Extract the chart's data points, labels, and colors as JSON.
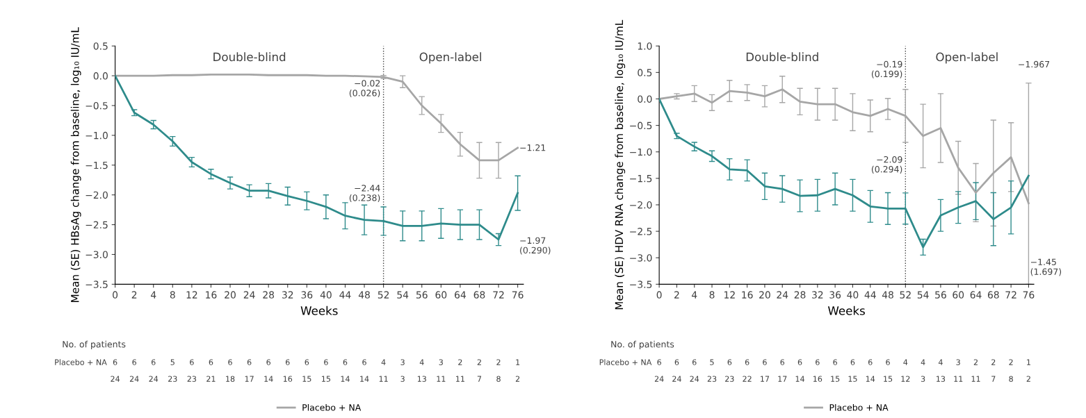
{
  "chart_data": [
    {
      "type": "line",
      "xlabel": "Weeks",
      "ylabel": "Mean (SE) HBsAg change from baseline, log₁₀ IU/mL",
      "categories": [
        "0",
        "2",
        "4",
        "8",
        "12",
        "16",
        "20",
        "24",
        "28",
        "32",
        "36",
        "40",
        "44",
        "48",
        "52",
        "54",
        "56",
        "60",
        "64",
        "68",
        "72",
        "76"
      ],
      "series": [
        {
          "name": "Placebo + NA",
          "color": "#a6a6a6",
          "values": [
            0,
            0,
            0,
            0.01,
            0.01,
            0.02,
            0.02,
            0.02,
            0.01,
            0.01,
            0.01,
            0,
            0,
            -0.01,
            -0.02,
            -0.1,
            -0.5,
            -0.8,
            -1.15,
            -1.42,
            -1.42,
            -1.21
          ],
          "errors": [
            null,
            null,
            null,
            null,
            null,
            null,
            null,
            null,
            null,
            null,
            null,
            null,
            null,
            null,
            0.026,
            0.1,
            0.15,
            0.15,
            0.2,
            0.3,
            0.3,
            null
          ]
        },
        {
          "color": "#2e8b8b",
          "values": [
            0,
            -0.62,
            -0.82,
            -1.1,
            -1.45,
            -1.65,
            -1.8,
            -1.93,
            -1.93,
            -2.02,
            -2.1,
            -2.2,
            -2.35,
            -2.42,
            -2.44,
            -2.52,
            -2.52,
            -2.48,
            -2.5,
            -2.5,
            -2.75,
            -1.97
          ],
          "errors": [
            null,
            0.05,
            0.07,
            0.08,
            0.08,
            0.08,
            0.1,
            0.1,
            0.12,
            0.15,
            0.15,
            0.2,
            0.22,
            0.25,
            0.238,
            0.25,
            0.25,
            0.25,
            0.25,
            0.25,
            0.1,
            0.29
          ]
        }
      ],
      "ylim": [
        -3.5,
        0.5
      ],
      "yticks": [
        {
          "value": -3.5,
          "label": "−3.5"
        },
        {
          "value": -3.0,
          "label": "−3.0"
        },
        {
          "value": -2.5,
          "label": "−2.5"
        },
        {
          "value": -2.0,
          "label": "−2.0"
        },
        {
          "value": -1.5,
          "label": "−1.5"
        },
        {
          "value": -1.0,
          "label": "−1.0"
        },
        {
          "value": -0.5,
          "label": "−0.5"
        },
        {
          "value": 0,
          "label": "0.0"
        },
        {
          "value": 0.5,
          "label": "0.5"
        }
      ],
      "ref_lines": [
        {
          "axis": "x",
          "value": "52",
          "color": "#404040",
          "line_style": "dotted"
        }
      ],
      "annotations": [
        "Double-blind",
        "Open-label",
        "No. of patients",
        "Placebo + NA",
        "6 6 6 5 6 6 6 6 6 6 6 6 6 6 4 3 4 3 2 2 2 1",
        "24 24 24 23 23 21 18 17 14 16 15 15 14 14 11 3 13 11 11 7 8 2",
        "−0.02\n(0.026)",
        "−2.44\n(0.238)",
        "−1.21",
        "−1.97\n(0.290)"
      ],
      "legend": "bottom",
      "grid": false,
      "marker": "none",
      "line_style": "solid"
    },
    {
      "type": "line",
      "xlabel": "Weeks",
      "ylabel": "Mean (SE) HDV RNA change from baseline, log₁₀ IU/mL",
      "categories": [
        "0",
        "2",
        "4",
        "8",
        "12",
        "16",
        "20",
        "24",
        "28",
        "32",
        "36",
        "40",
        "44",
        "48",
        "52",
        "54",
        "56",
        "60",
        "64",
        "68",
        "72",
        "76"
      ],
      "series": [
        {
          "name": "Placebo + NA",
          "color": "#a6a6a6",
          "values": [
            0,
            0.05,
            0.1,
            -0.07,
            0.15,
            0.12,
            0.05,
            0.18,
            -0.05,
            -0.1,
            -0.1,
            -0.25,
            -0.32,
            -0.19,
            -0.32,
            -0.7,
            -0.55,
            -1.3,
            -1.77,
            -1.4,
            -1.1,
            -1.97
          ],
          "errors": [
            null,
            0.05,
            0.15,
            0.15,
            0.2,
            0.15,
            0.2,
            0.25,
            0.25,
            0.3,
            0.3,
            0.35,
            0.3,
            0.199,
            0.5,
            0.6,
            0.65,
            0.5,
            0.55,
            1.0,
            0.65,
            [
              -3.5,
              0.3
            ]
          ]
        },
        {
          "color": "#2e8b8b",
          "values": [
            0,
            -0.7,
            -0.9,
            -1.08,
            -1.33,
            -1.35,
            -1.65,
            -1.7,
            -1.83,
            -1.82,
            -1.7,
            -1.82,
            -2.03,
            -2.07,
            -2.07,
            -2.8,
            -2.2,
            -2.05,
            -1.93,
            -2.27,
            -2.05,
            -1.45
          ],
          "errors": [
            null,
            0.05,
            0.08,
            0.1,
            0.2,
            0.2,
            0.25,
            0.25,
            0.3,
            0.3,
            0.3,
            0.3,
            0.3,
            0.3,
            0.294,
            0.15,
            0.3,
            0.3,
            0.35,
            0.5,
            0.5,
            null
          ]
        }
      ],
      "ylim": [
        -3.5,
        1.0
      ],
      "yticks": [
        {
          "value": -3.5,
          "label": "−3.5"
        },
        {
          "value": -3.0,
          "label": "−3.0"
        },
        {
          "value": -2.5,
          "label": "−2.5"
        },
        {
          "value": -2.0,
          "label": "−2.0"
        },
        {
          "value": -1.5,
          "label": "−1.5"
        },
        {
          "value": -1.0,
          "label": "−1.0"
        },
        {
          "value": -0.5,
          "label": "−0.5"
        },
        {
          "value": 0,
          "label": "0.0"
        },
        {
          "value": 0.5,
          "label": "0.5"
        },
        {
          "value": 1.0,
          "label": "1.0"
        }
      ],
      "ref_lines": [
        {
          "axis": "x",
          "value": "52",
          "color": "#404040",
          "line_style": "dotted"
        }
      ],
      "annotations": [
        "Double-blind",
        "Open-label",
        "No. of patients",
        "Placebo + NA",
        "6 6 6 5 6 6 6 6 6 6 6 6 6 6 4 4 4 3 2 2 2 1",
        "24 24 24 23 23 22 17 17 14 16 15 15 14 15 12 3 13 11 11 7 8 2",
        "−0.19\n(0.199)",
        "−2.09\n(0.294)",
        "−1.967",
        "−1.45\n(1.697)"
      ],
      "legend": "bottom",
      "grid": false,
      "marker": "none",
      "line_style": "solid"
    }
  ]
}
